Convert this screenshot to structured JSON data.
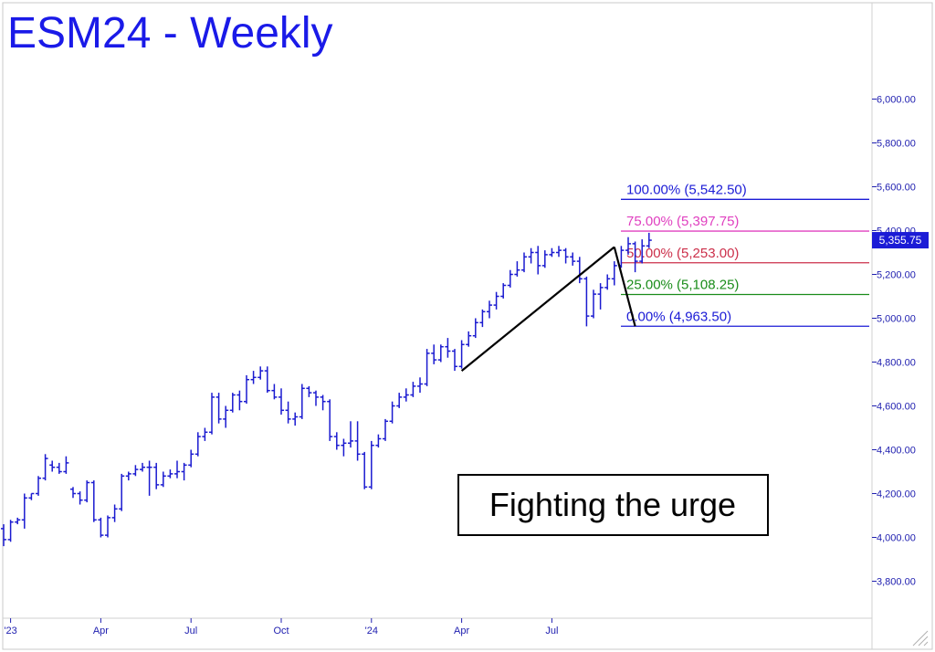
{
  "chart_data": {
    "type": "bar",
    "title": "ESM24 - Weekly",
    "subtitle": "",
    "xlabel": "",
    "ylabel": "",
    "ylim": [
      3640,
      6240
    ],
    "y_ticks": [
      "3,800.00",
      "4,000.00",
      "4,200.00",
      "4,400.00",
      "4,600.00",
      "4,800.00",
      "5,000.00",
      "5,200.00",
      "5,400.00",
      "5,600.00",
      "5,800.00",
      "6,000.00"
    ],
    "y_tick_values": [
      3800,
      4000,
      4200,
      4400,
      4600,
      4800,
      5000,
      5200,
      5400,
      5600,
      5800,
      6000
    ],
    "x_tick_labels": [
      "'23",
      "Apr",
      "Jul",
      "Oct",
      "'24",
      "Apr",
      "Jul"
    ],
    "x_tick_weeks": [
      1,
      14,
      27,
      40,
      53,
      66,
      79
    ],
    "series": [
      {
        "name": "",
        "ohlc": [
          [
            4040,
            4060,
            3960,
            3990
          ],
          [
            3990,
            4080,
            3980,
            4070
          ],
          [
            4070,
            4090,
            4060,
            4080
          ],
          [
            4080,
            4200,
            4040,
            4180
          ],
          [
            4180,
            4200,
            4170,
            4200
          ],
          [
            4200,
            4280,
            4190,
            4270
          ],
          [
            4270,
            4380,
            4260,
            4360
          ],
          [
            4330,
            4350,
            4300,
            4320
          ],
          [
            4320,
            4340,
            4290,
            4300
          ],
          [
            4300,
            4370,
            4290,
            4340
          ],
          [
            4220,
            4230,
            4180,
            4200
          ],
          [
            4200,
            4210,
            4150,
            4170
          ],
          [
            4170,
            4260,
            4160,
            4250
          ],
          [
            4250,
            4260,
            4070,
            4080
          ],
          [
            4080,
            4090,
            4000,
            4010
          ],
          [
            4010,
            4100,
            4000,
            4090
          ],
          [
            4090,
            4150,
            4070,
            4130
          ],
          [
            4130,
            4290,
            4120,
            4280
          ],
          [
            4280,
            4300,
            4260,
            4290
          ],
          [
            4290,
            4330,
            4280,
            4310
          ],
          [
            4310,
            4340,
            4300,
            4320
          ],
          [
            4320,
            4350,
            4190,
            4320
          ],
          [
            4320,
            4340,
            4220,
            4240
          ],
          [
            4240,
            4300,
            4230,
            4280
          ],
          [
            4280,
            4310,
            4270,
            4290
          ],
          [
            4290,
            4350,
            4270,
            4300
          ],
          [
            4300,
            4340,
            4260,
            4330
          ],
          [
            4330,
            4400,
            4320,
            4380
          ],
          [
            4380,
            4480,
            4370,
            4460
          ],
          [
            4460,
            4500,
            4440,
            4480
          ],
          [
            4480,
            4660,
            4470,
            4640
          ],
          [
            4640,
            4660,
            4520,
            4540
          ],
          [
            4540,
            4600,
            4500,
            4580
          ],
          [
            4580,
            4660,
            4570,
            4650
          ],
          [
            4650,
            4670,
            4580,
            4620
          ],
          [
            4620,
            4740,
            4610,
            4720
          ],
          [
            4720,
            4760,
            4700,
            4730
          ],
          [
            4730,
            4780,
            4720,
            4760
          ],
          [
            4760,
            4780,
            4660,
            4670
          ],
          [
            4670,
            4700,
            4630,
            4640
          ],
          [
            4640,
            4680,
            4560,
            4580
          ],
          [
            4580,
            4620,
            4520,
            4540
          ],
          [
            4540,
            4570,
            4510,
            4550
          ],
          [
            4550,
            4700,
            4540,
            4680
          ],
          [
            4680,
            4690,
            4640,
            4660
          ],
          [
            4660,
            4670,
            4600,
            4640
          ],
          [
            4640,
            4650,
            4580,
            4620
          ],
          [
            4620,
            4630,
            4440,
            4460
          ],
          [
            4460,
            4480,
            4400,
            4420
          ],
          [
            4420,
            4450,
            4370,
            4430
          ],
          [
            4430,
            4530,
            4410,
            4440
          ],
          [
            4440,
            4530,
            4350,
            4380
          ],
          [
            4380,
            4390,
            4220,
            4230
          ],
          [
            4230,
            4440,
            4220,
            4420
          ],
          [
            4420,
            4470,
            4410,
            4450
          ],
          [
            4450,
            4540,
            4440,
            4530
          ],
          [
            4530,
            4620,
            4520,
            4600
          ],
          [
            4600,
            4660,
            4590,
            4640
          ],
          [
            4640,
            4680,
            4620,
            4650
          ],
          [
            4650,
            4710,
            4640,
            4690
          ],
          [
            4690,
            4730,
            4660,
            4700
          ],
          [
            4700,
            4860,
            4690,
            4840
          ],
          [
            4840,
            4880,
            4790,
            4810
          ],
          [
            4810,
            4880,
            4800,
            4870
          ],
          [
            4870,
            4910,
            4820,
            4850
          ],
          [
            4850,
            4860,
            4760,
            4780
          ],
          [
            4780,
            4900,
            4770,
            4880
          ],
          [
            4880,
            4940,
            4870,
            4920
          ],
          [
            4920,
            5000,
            4910,
            4980
          ],
          [
            4980,
            5040,
            4960,
            5030
          ],
          [
            5030,
            5080,
            5000,
            5060
          ],
          [
            5060,
            5120,
            5040,
            5100
          ],
          [
            5100,
            5160,
            5090,
            5150
          ],
          [
            5150,
            5220,
            5140,
            5200
          ],
          [
            5200,
            5260,
            5190,
            5220
          ],
          [
            5220,
            5300,
            5210,
            5280
          ],
          [
            5280,
            5320,
            5250,
            5300
          ],
          [
            5300,
            5330,
            5200,
            5240
          ],
          [
            5240,
            5310,
            5230,
            5290
          ],
          [
            5290,
            5320,
            5280,
            5300
          ],
          [
            5300,
            5330,
            5280,
            5310
          ],
          [
            5310,
            5320,
            5250,
            5280
          ],
          [
            5280,
            5300,
            5240,
            5260
          ],
          [
            5260,
            5280,
            5160,
            5180
          ],
          [
            5180,
            5190,
            4963,
            5010
          ],
          [
            5010,
            5130,
            5000,
            5110
          ],
          [
            5110,
            5160,
            5040,
            5140
          ],
          [
            5140,
            5200,
            5130,
            5180
          ],
          [
            5180,
            5260,
            5150,
            5240
          ],
          [
            5240,
            5330,
            5230,
            5310
          ],
          [
            5310,
            5370,
            5290,
            5340
          ],
          [
            5340,
            5350,
            5210,
            5260
          ],
          [
            5260,
            5360,
            5250,
            5330
          ],
          [
            5330,
            5390,
            5320,
            5356
          ]
        ]
      }
    ],
    "current_price_label": "5,355.75",
    "fib_levels": [
      {
        "label": "100.00% (5,542.50)",
        "value": 5542.5,
        "color": "#1b1bd6"
      },
      {
        "label": "75.00% (5,397.75)",
        "value": 5397.75,
        "color": "#e040c0"
      },
      {
        "label": "50.00% (5,253.00)",
        "value": 5253.0,
        "color": "#cc2f4a"
      },
      {
        "label": "25.00% (5,108.25)",
        "value": 5108.25,
        "color": "#1a8c1a"
      },
      {
        "label": "0.00% (4,963.50)",
        "value": 4963.5,
        "color": "#1b1bd6"
      }
    ],
    "swing_line": [
      [
        66,
        4760
      ],
      [
        88,
        5325
      ],
      [
        91,
        4963.5
      ]
    ],
    "annotation": "Fighting the urge",
    "colors": {
      "bars": "#1a1ad0",
      "axis_text": "#2020b0",
      "title": "#1a1ae8",
      "price_tag_bg": "#1b1bd6"
    },
    "grid": false,
    "legend": "none"
  }
}
